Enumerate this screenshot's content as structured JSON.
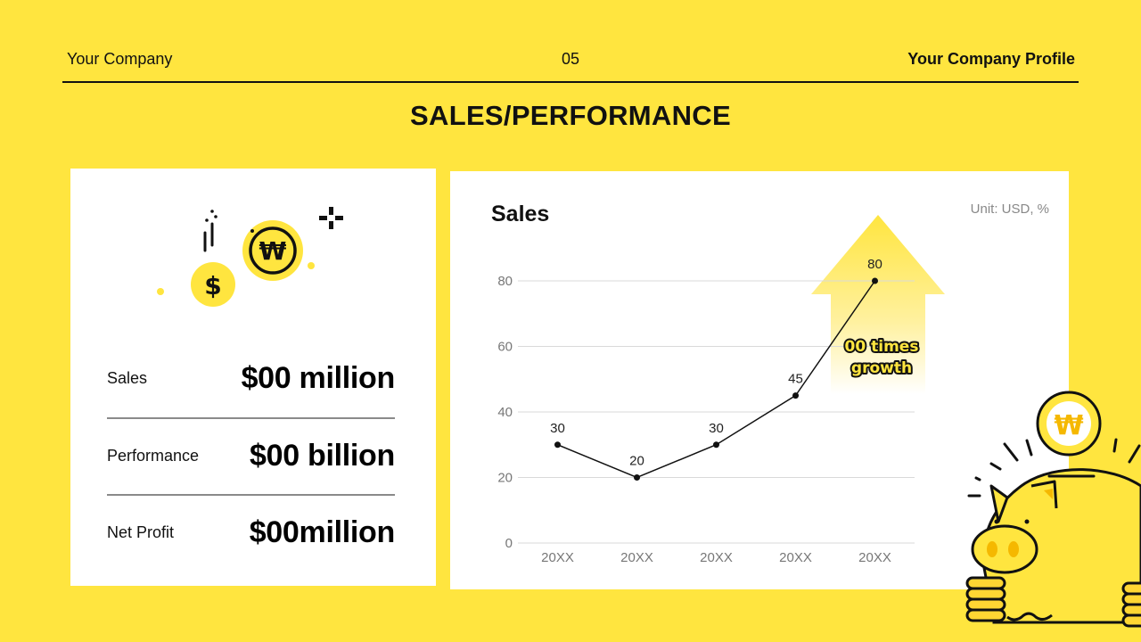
{
  "header": {
    "company": "Your Company",
    "page_number": "05",
    "profile": "Your Company Profile"
  },
  "title": "SALES/PERFORMANCE",
  "summary": {
    "icons": [
      "falling-lines-icon",
      "won-coin-icon",
      "dollar-coin-icon",
      "sparkle-icon"
    ],
    "items": [
      {
        "label": "Sales",
        "value": "$00 million"
      },
      {
        "label": "Performance",
        "value": "$00 billion"
      },
      {
        "label": "Net Profit",
        "value": "$00million"
      }
    ]
  },
  "chart_panel": {
    "title": "Sales",
    "unit": "Unit: USD, %",
    "callout": [
      "00 times",
      "growth"
    ]
  },
  "colors": {
    "background": "#FFE53F",
    "card": "#FFFFFF",
    "accent_yellow": "#FFE53F",
    "text": "#111111",
    "grid": "#D9D9D9",
    "axis_text": "#777777"
  },
  "chart_data": {
    "type": "line",
    "title": "Sales",
    "subtitle": "Unit: USD, %",
    "categories": [
      "20XX",
      "20XX",
      "20XX",
      "20XX",
      "20XX"
    ],
    "series": [
      {
        "name": "Sales",
        "values": [
          30,
          20,
          30,
          45,
          80
        ]
      }
    ],
    "data_labels": [
      "30",
      "20",
      "30",
      "45",
      "80"
    ],
    "xlabel": "",
    "ylabel": "",
    "ylim": [
      0,
      80
    ],
    "yticks": [
      0,
      20,
      40,
      60,
      80
    ],
    "grid": true,
    "legend": "none",
    "annotations": [
      {
        "text": "00 times growth",
        "shape": "up-arrow",
        "near_index": 4
      }
    ]
  }
}
